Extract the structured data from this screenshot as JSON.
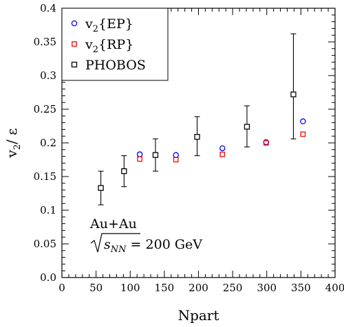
{
  "chart_data": {
    "type": "scatter",
    "title": "",
    "xlabel": "Npart",
    "ylabel": {
      "main": "v",
      "sub": "2",
      "post": "/ ε"
    },
    "xlim": [
      0,
      400
    ],
    "ylim": [
      0,
      0.4
    ],
    "x_ticks": [
      0,
      50,
      100,
      150,
      200,
      250,
      300,
      350,
      400
    ],
    "y_ticks": [
      0.0,
      0.05,
      0.1,
      0.15,
      0.2,
      0.25,
      0.3,
      0.35,
      0.4
    ],
    "y_tick_labels": [
      "0.0",
      "0.05",
      "0.1",
      "0.15",
      "0.2",
      "0.25",
      "0.3",
      "0.35",
      "0.4"
    ],
    "legend_position": "top-left",
    "series": [
      {
        "name": "v2{EP}",
        "legend": {
          "main": "v",
          "sub": "2",
          "post": "{EP}"
        },
        "marker": "circle",
        "color": "#0000ff",
        "points": [
          {
            "x": 114,
            "y": 0.183
          },
          {
            "x": 167,
            "y": 0.182
          },
          {
            "x": 235,
            "y": 0.192
          },
          {
            "x": 299,
            "y": 0.201
          },
          {
            "x": 353,
            "y": 0.232
          }
        ]
      },
      {
        "name": "v2{RP}",
        "legend": {
          "main": "v",
          "sub": "2",
          "post": "{RP}"
        },
        "marker": "square",
        "color": "#ff0000",
        "points": [
          {
            "x": 114,
            "y": 0.176
          },
          {
            "x": 167,
            "y": 0.175
          },
          {
            "x": 235,
            "y": 0.183
          },
          {
            "x": 299,
            "y": 0.2
          },
          {
            "x": 353,
            "y": 0.213
          }
        ]
      },
      {
        "name": "PHOBOS",
        "legend": {
          "main": "PHOBOS",
          "sub": "",
          "post": ""
        },
        "marker": "square",
        "color": "#000000",
        "points": [
          {
            "x": 57,
            "y": 0.133,
            "err_low": 0.108,
            "err_high": 0.158
          },
          {
            "x": 91,
            "y": 0.158,
            "err_low": 0.135,
            "err_high": 0.181
          },
          {
            "x": 137,
            "y": 0.182,
            "err_low": 0.158,
            "err_high": 0.206
          },
          {
            "x": 198,
            "y": 0.209,
            "err_low": 0.181,
            "err_high": 0.239
          },
          {
            "x": 271,
            "y": 0.224,
            "err_low": 0.194,
            "err_high": 0.255
          },
          {
            "x": 339,
            "y": 0.272,
            "err_low": 0.206,
            "err_high": 0.362
          }
        ]
      }
    ],
    "annotation": {
      "line1": "Au+Au",
      "line2_sub": "NN",
      "line2_rest": " = 200 GeV"
    }
  }
}
